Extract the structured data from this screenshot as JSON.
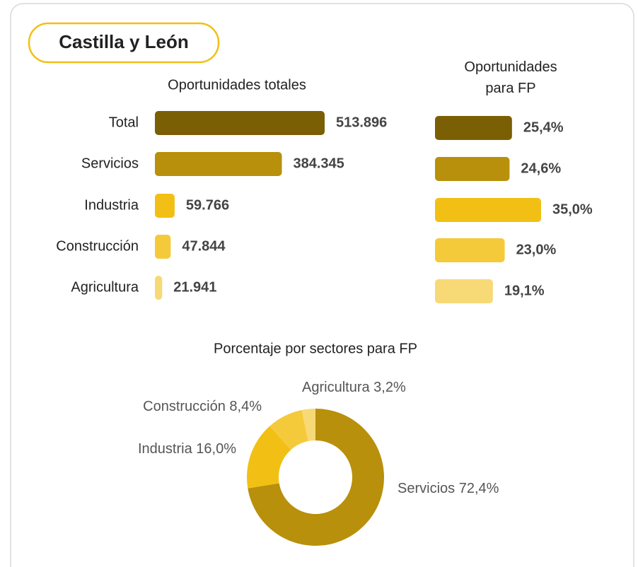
{
  "header": {
    "title": "Castilla y León"
  },
  "chart_data": [
    {
      "type": "hbar",
      "title": "Oportunidades totales",
      "categories": [
        "Total",
        "Servicios",
        "Industria",
        "Construcción",
        "Agricultura"
      ],
      "values": [
        513896,
        384345,
        59766,
        47844,
        21941
      ],
      "value_labels": [
        "513.896",
        "384.345",
        "59.766",
        "47.844",
        "21.941"
      ],
      "colors": [
        "#7a5f04",
        "#b8900b",
        "#f2c014",
        "#f5ca3a",
        "#f7d976"
      ]
    },
    {
      "type": "hbar",
      "title": "Oportunidades para FP",
      "values": [
        25.4,
        24.6,
        35.0,
        23.0,
        19.1
      ],
      "value_labels": [
        "25,4%",
        "24,6%",
        "35,0%",
        "23,0%",
        "19,1%"
      ],
      "colors": [
        "#7a5f04",
        "#b8900b",
        "#f2c014",
        "#f5ca3a",
        "#f7d976"
      ]
    },
    {
      "type": "donut",
      "title": "Porcentaje por sectores para FP",
      "categories": [
        "Servicios",
        "Industria",
        "Construcción",
        "Agricultura"
      ],
      "values": [
        72.4,
        16.0,
        8.4,
        3.2
      ],
      "value_labels": [
        "72,4%",
        "16,0%",
        "8,4%",
        "3,2%"
      ],
      "colors": [
        "#b8900b",
        "#f2c014",
        "#f5ca3a",
        "#f7d976"
      ]
    }
  ]
}
